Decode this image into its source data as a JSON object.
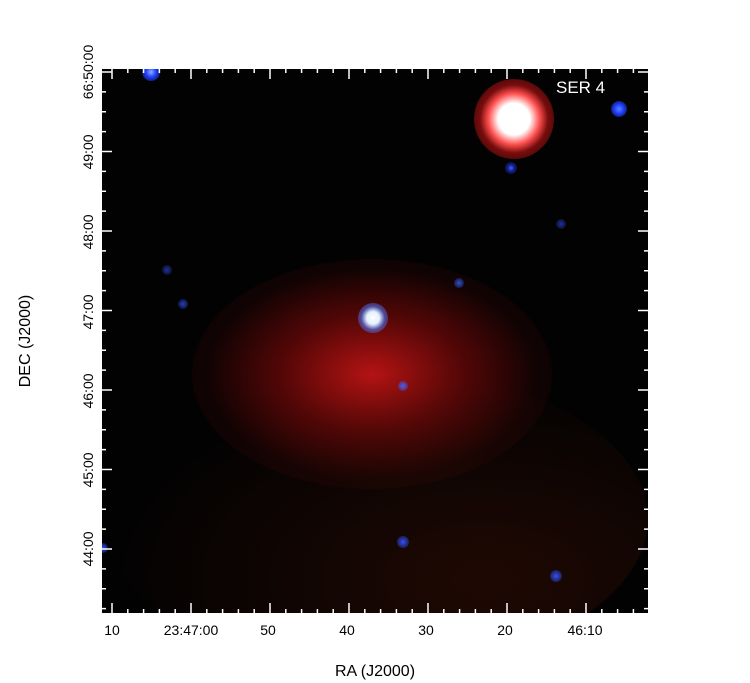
{
  "image": {
    "object_label": "SER 4",
    "colors": {
      "background": "#020202",
      "nebula": "#b01010",
      "star": "#ffffff",
      "faint_stars": "#2040ff"
    }
  },
  "axes": {
    "x_title": "RA (J2000)",
    "y_title": "DEC (J2000)",
    "x_ticks": [
      "10",
      "23:47:00",
      "50",
      "40",
      "30",
      "20",
      "46:10"
    ],
    "y_ticks": [
      "66:50:00",
      "49:00",
      "48:00",
      "47:00",
      "46:00",
      "45:00",
      "44:00"
    ]
  }
}
